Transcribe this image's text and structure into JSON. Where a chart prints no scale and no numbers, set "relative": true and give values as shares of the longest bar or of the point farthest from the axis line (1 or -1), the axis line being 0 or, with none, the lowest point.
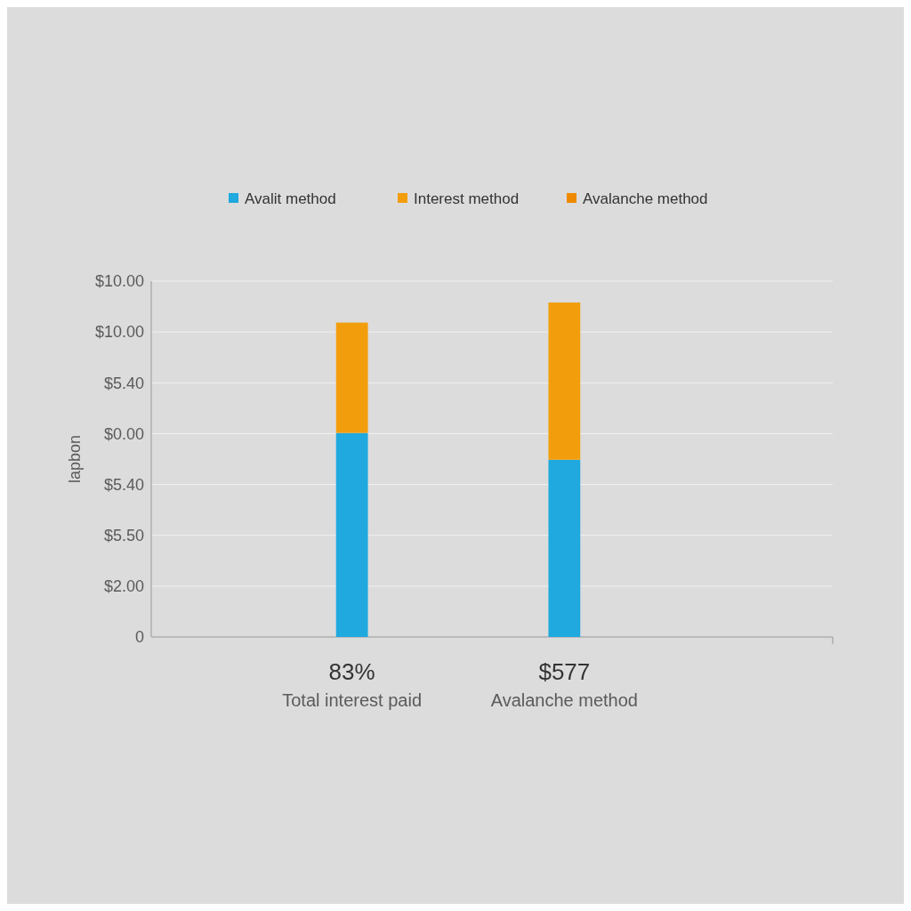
{
  "chart_data": {
    "type": "bar",
    "stacked": true,
    "relative": true,
    "ylabel": "lapbon",
    "categories": [
      "Total interest paid",
      "Avalanche method"
    ],
    "series": [
      {
        "name": "Avalit method",
        "color": "#1fa9de",
        "values": [
          0.61,
          0.53
        ]
      },
      {
        "name": "Interest method",
        "color": "#f29e0c",
        "values": [
          0.33,
          0.47
        ]
      },
      {
        "name": "Avalanche method",
        "color": "#ef8a00",
        "values": [
          null,
          null
        ]
      }
    ],
    "grid": "y",
    "legend": "top",
    "annotations": [
      "$10.00",
      "$10.00",
      "$5.40",
      "$0.00",
      "$5.40",
      "$5.50",
      "$2.00",
      "0",
      "83%",
      "$577"
    ]
  }
}
